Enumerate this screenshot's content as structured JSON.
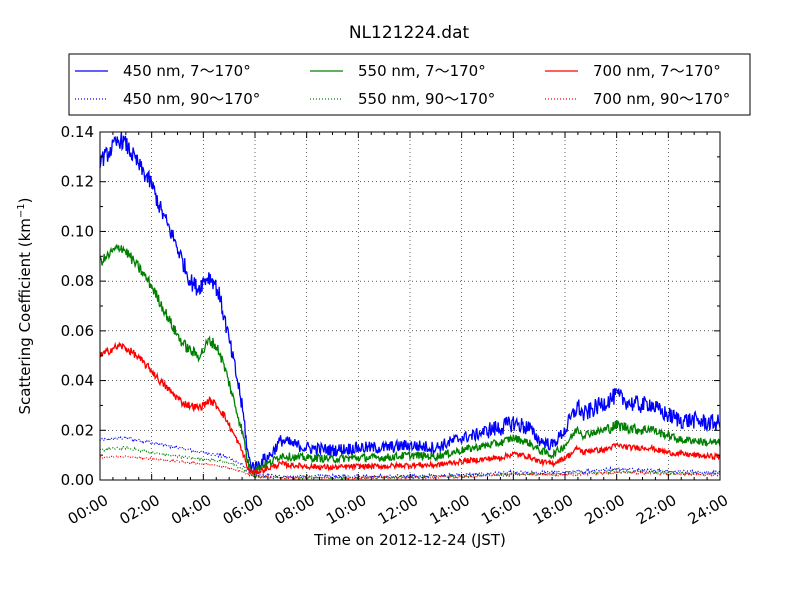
{
  "chart_data": {
    "type": "line",
    "title": "NL121224.dat",
    "xlabel": "Time on 2012-12-24 (JST)",
    "ylabel_main": "Scattering Coefficient (km",
    "ylabel_sup": "−1",
    "ylabel_close": ")",
    "xlim": [
      0,
      24
    ],
    "ylim": [
      0,
      0.14
    ],
    "grid": true,
    "legend_position": "top",
    "x_ticks": [
      0,
      2,
      4,
      6,
      8,
      10,
      12,
      14,
      16,
      18,
      20,
      22,
      24
    ],
    "x_tick_labels": [
      "00:00",
      "02:00",
      "04:00",
      "06:00",
      "08:00",
      "10:00",
      "12:00",
      "14:00",
      "16:00",
      "18:00",
      "20:00",
      "22:00",
      "24:00"
    ],
    "y_ticks": [
      0,
      0.02,
      0.04,
      0.06,
      0.08,
      0.1,
      0.12,
      0.14
    ],
    "y_tick_labels": [
      "0.00",
      "0.02",
      "0.04",
      "0.06",
      "0.08",
      "0.10",
      "0.12",
      "0.14"
    ],
    "series": [
      {
        "name": "450 nm, 7～170°",
        "color": "#0000ff",
        "style": "solid",
        "noise": 0.0025,
        "x": [
          0,
          0.2,
          0.5,
          0.8,
          1.0,
          1.3,
          1.6,
          2.0,
          2.3,
          2.6,
          2.9,
          3.2,
          3.5,
          3.8,
          4.0,
          4.2,
          4.4,
          4.6,
          4.8,
          5.0,
          5.2,
          5.4,
          5.6,
          5.7,
          5.8,
          6.0,
          6.3,
          6.6,
          7.0,
          7.3,
          7.6,
          8.0,
          9.0,
          10.0,
          11.0,
          12.0,
          13.0,
          14.0,
          14.5,
          15.0,
          15.5,
          16.0,
          16.3,
          16.6,
          17.0,
          17.5,
          18.0,
          18.3,
          18.5,
          18.7,
          19.0,
          19.5,
          20.0,
          20.5,
          21.0,
          21.3,
          21.6,
          22.0,
          22.5,
          23.0,
          23.5,
          24.0
        ],
        "y": [
          0.129,
          0.13,
          0.134,
          0.137,
          0.135,
          0.13,
          0.125,
          0.119,
          0.11,
          0.103,
          0.096,
          0.088,
          0.08,
          0.077,
          0.08,
          0.082,
          0.08,
          0.075,
          0.066,
          0.056,
          0.046,
          0.036,
          0.022,
          0.012,
          0.007,
          0.005,
          0.008,
          0.01,
          0.016,
          0.015,
          0.014,
          0.013,
          0.012,
          0.013,
          0.013,
          0.014,
          0.013,
          0.017,
          0.018,
          0.02,
          0.021,
          0.023,
          0.022,
          0.021,
          0.016,
          0.014,
          0.02,
          0.026,
          0.03,
          0.026,
          0.028,
          0.031,
          0.034,
          0.031,
          0.03,
          0.031,
          0.028,
          0.026,
          0.024,
          0.024,
          0.023,
          0.023
        ]
      },
      {
        "name": "550 nm, 7～170°",
        "color": "#008000",
        "style": "solid",
        "noise": 0.0016,
        "x": [
          0,
          0.2,
          0.5,
          0.8,
          1.0,
          1.3,
          1.6,
          2.0,
          2.3,
          2.6,
          2.9,
          3.2,
          3.5,
          3.8,
          4.0,
          4.2,
          4.4,
          4.6,
          4.8,
          5.0,
          5.2,
          5.4,
          5.6,
          5.7,
          5.8,
          6.0,
          6.3,
          6.6,
          7.0,
          7.3,
          7.6,
          8.0,
          9.0,
          10.0,
          11.0,
          12.0,
          13.0,
          14.0,
          14.5,
          15.0,
          15.5,
          16.0,
          16.3,
          16.6,
          17.0,
          17.5,
          18.0,
          18.3,
          18.5,
          18.7,
          19.0,
          19.5,
          20.0,
          20.5,
          21.0,
          21.3,
          21.6,
          22.0,
          22.5,
          23.0,
          23.5,
          24.0
        ],
        "y": [
          0.088,
          0.089,
          0.092,
          0.094,
          0.092,
          0.088,
          0.084,
          0.078,
          0.072,
          0.066,
          0.06,
          0.055,
          0.052,
          0.05,
          0.052,
          0.056,
          0.055,
          0.052,
          0.046,
          0.039,
          0.031,
          0.024,
          0.015,
          0.008,
          0.005,
          0.004,
          0.006,
          0.007,
          0.01,
          0.0095,
          0.009,
          0.009,
          0.0085,
          0.009,
          0.009,
          0.01,
          0.0095,
          0.012,
          0.013,
          0.014,
          0.015,
          0.017,
          0.016,
          0.015,
          0.012,
          0.01,
          0.014,
          0.018,
          0.021,
          0.018,
          0.019,
          0.02,
          0.022,
          0.021,
          0.02,
          0.021,
          0.019,
          0.018,
          0.016,
          0.016,
          0.015,
          0.015
        ]
      },
      {
        "name": "700 nm, 7～170°",
        "color": "#ff0000",
        "style": "solid",
        "noise": 0.0011,
        "x": [
          0,
          0.2,
          0.5,
          0.8,
          1.0,
          1.3,
          1.6,
          2.0,
          2.3,
          2.6,
          2.9,
          3.2,
          3.5,
          3.8,
          4.0,
          4.2,
          4.4,
          4.6,
          4.8,
          5.0,
          5.2,
          5.4,
          5.6,
          5.7,
          5.8,
          6.0,
          6.3,
          6.6,
          7.0,
          7.3,
          7.6,
          8.0,
          9.0,
          10.0,
          11.0,
          12.0,
          13.0,
          14.0,
          14.5,
          15.0,
          15.5,
          16.0,
          16.3,
          16.6,
          17.0,
          17.5,
          18.0,
          18.3,
          18.5,
          18.7,
          19.0,
          19.5,
          20.0,
          20.5,
          21.0,
          21.3,
          21.6,
          22.0,
          22.5,
          23.0,
          23.5,
          24.0
        ],
        "y": [
          0.05,
          0.051,
          0.053,
          0.054,
          0.053,
          0.051,
          0.048,
          0.044,
          0.04,
          0.037,
          0.034,
          0.031,
          0.03,
          0.029,
          0.03,
          0.032,
          0.031,
          0.029,
          0.026,
          0.022,
          0.018,
          0.014,
          0.009,
          0.005,
          0.0035,
          0.003,
          0.004,
          0.005,
          0.0065,
          0.006,
          0.0058,
          0.0055,
          0.005,
          0.0055,
          0.0055,
          0.006,
          0.006,
          0.0075,
          0.008,
          0.0085,
          0.009,
          0.0105,
          0.01,
          0.0095,
          0.0075,
          0.0065,
          0.009,
          0.011,
          0.013,
          0.011,
          0.012,
          0.012,
          0.014,
          0.013,
          0.013,
          0.013,
          0.012,
          0.011,
          0.0105,
          0.01,
          0.0095,
          0.0095
        ]
      },
      {
        "name": "450 nm, 90～170°",
        "color": "#0000ff",
        "style": "dotted",
        "noise": 0.0006,
        "x": [
          0,
          1,
          2,
          3,
          4,
          5,
          5.5,
          5.8,
          6.0,
          7,
          8,
          10,
          12,
          14,
          16,
          18,
          20,
          22,
          24
        ],
        "y": [
          0.016,
          0.017,
          0.015,
          0.013,
          0.011,
          0.009,
          0.006,
          0.003,
          0.002,
          0.0015,
          0.0015,
          0.0015,
          0.0015,
          0.002,
          0.003,
          0.003,
          0.0045,
          0.0035,
          0.003
        ]
      },
      {
        "name": "550 nm, 90～170°",
        "color": "#008000",
        "style": "dotted",
        "noise": 0.0005,
        "x": [
          0,
          1,
          2,
          3,
          4,
          5,
          5.5,
          5.8,
          6.0,
          7,
          8,
          10,
          12,
          14,
          16,
          18,
          20,
          22,
          24
        ],
        "y": [
          0.012,
          0.013,
          0.011,
          0.0095,
          0.0085,
          0.007,
          0.0045,
          0.0025,
          0.0015,
          0.001,
          0.001,
          0.001,
          0.0012,
          0.0015,
          0.0025,
          0.0025,
          0.0035,
          0.003,
          0.0025
        ]
      },
      {
        "name": "700 nm, 90～170°",
        "color": "#ff0000",
        "style": "dotted",
        "noise": 0.0004,
        "x": [
          0,
          1,
          2,
          3,
          4,
          5,
          5.5,
          5.8,
          6.0,
          7,
          8,
          10,
          12,
          14,
          16,
          18,
          20,
          22,
          24
        ],
        "y": [
          0.009,
          0.0095,
          0.0085,
          0.0075,
          0.0065,
          0.005,
          0.0035,
          0.002,
          0.0012,
          0.0008,
          0.0008,
          0.0008,
          0.001,
          0.0012,
          0.002,
          0.002,
          0.003,
          0.0025,
          0.002
        ]
      }
    ]
  }
}
